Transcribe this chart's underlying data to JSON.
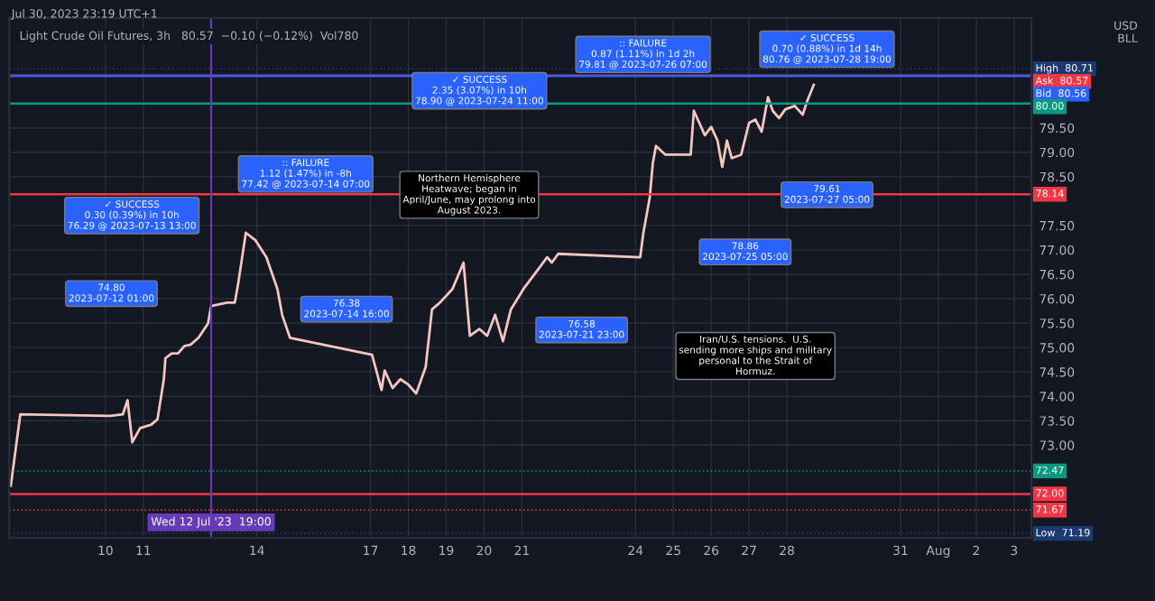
{
  "chart_data": {
    "type": "line",
    "title": "Light Crude Oil Futures, 3h",
    "subtitle": "80.57  −0.10 (−0.12%)  Vol780",
    "x": [
      "2023-07-07T12:00",
      "2023-07-07T18:00",
      "2023-07-10T03:00",
      "2023-07-10T11:00",
      "2023-07-10T14:00",
      "2023-07-10T17:00",
      "2023-07-10T22:00",
      "2023-07-11T05:00",
      "2023-07-11T09:00",
      "2023-07-11T13:00",
      "2023-07-11T14:00",
      "2023-07-11T18:00",
      "2023-07-11T22:00",
      "2023-07-12T02:00",
      "2023-07-12T06:00",
      "2023-07-12T11:00",
      "2023-07-12T17:00",
      "2023-07-12T19:00",
      "2023-07-13T05:00",
      "2023-07-13T10:00",
      "2023-07-13T12:00",
      "2023-07-13T17:00",
      "2023-07-13T23:00",
      "2023-07-14T06:00",
      "2023-07-14T13:00",
      "2023-07-14T16:00",
      "2023-07-14T21:00",
      "2023-07-17T01:00",
      "2023-07-17T07:00",
      "2023-07-17T09:00",
      "2023-07-17T14:00",
      "2023-07-17T19:00",
      "2023-07-18T00:00",
      "2023-07-18T05:00",
      "2023-07-18T11:00",
      "2023-07-18T15:00",
      "2023-07-18T20:00",
      "2023-07-19T04:00",
      "2023-07-19T11:00",
      "2023-07-19T15:00",
      "2023-07-19T21:00",
      "2023-07-20T02:00",
      "2023-07-20T07:00",
      "2023-07-20T12:00",
      "2023-07-20T17:00",
      "2023-07-21T01:00",
      "2023-07-21T11:00",
      "2023-07-21T16:00",
      "2023-07-21T19:00",
      "2023-07-21T23:00",
      "2023-07-24T03:00",
      "2023-07-24T05:00",
      "2023-07-24T09:00",
      "2023-07-24T11:00",
      "2023-07-24T13:00",
      "2023-07-24T19:00",
      "2023-07-25T05:00",
      "2023-07-25T11:00",
      "2023-07-25T13:00",
      "2023-07-25T20:00",
      "2023-07-26T00:00",
      "2023-07-26T04:00",
      "2023-07-26T07:00",
      "2023-07-26T10:00",
      "2023-07-26T13:00",
      "2023-07-26T19:00",
      "2023-07-27T00:00",
      "2023-07-27T04:00",
      "2023-07-27T08:00",
      "2023-07-27T12:00",
      "2023-07-27T15:00",
      "2023-07-27T19:00",
      "2023-07-27T23:00",
      "2023-07-28T05:00",
      "2023-07-28T10:00",
      "2023-07-28T13:00",
      "2023-07-28T17:00"
    ],
    "series": [
      {
        "color": "#f5c6c0",
        "values": [
          72.17,
          73.63,
          73.6,
          73.63,
          73.92,
          73.06,
          73.35,
          73.42,
          73.53,
          74.35,
          74.78,
          74.88,
          74.88,
          75.03,
          75.06,
          75.2,
          75.49,
          75.85,
          75.92,
          75.92,
          76.28,
          77.35,
          77.2,
          76.85,
          76.2,
          75.67,
          75.2,
          74.85,
          74.13,
          74.53,
          74.17,
          74.35,
          74.24,
          74.06,
          74.6,
          75.78,
          75.92,
          76.2,
          76.74,
          75.24,
          75.38,
          75.24,
          75.67,
          75.13,
          75.78,
          76.2,
          76.63,
          76.85,
          76.74,
          76.92,
          76.85,
          77.35,
          78.06,
          78.78,
          79.13,
          78.95,
          78.95,
          78.95,
          79.85,
          79.35,
          79.52,
          79.24,
          78.7,
          79.24,
          78.88,
          78.95,
          79.6,
          79.67,
          79.42,
          80.13,
          79.85,
          79.7,
          79.88,
          79.95,
          79.77,
          80.06,
          80.38
        ]
      }
    ],
    "xlim": [
      "2023-07-07T11:00",
      "2023-08-03T11:00"
    ],
    "ylim": [
      71.1,
      81.75
    ],
    "xticks": [
      {
        "value": "2023-07-10",
        "label": "10"
      },
      {
        "value": "2023-07-11",
        "label": "11"
      },
      {
        "value": "2023-07-14",
        "label": "14"
      },
      {
        "value": "2023-07-17",
        "label": "17"
      },
      {
        "value": "2023-07-18",
        "label": "18"
      },
      {
        "value": "2023-07-19",
        "label": "19"
      },
      {
        "value": "2023-07-20",
        "label": "20"
      },
      {
        "value": "2023-07-21",
        "label": "21"
      },
      {
        "value": "2023-07-24",
        "label": "24"
      },
      {
        "value": "2023-07-25",
        "label": "25"
      },
      {
        "value": "2023-07-26",
        "label": "26"
      },
      {
        "value": "2023-07-27",
        "label": "27"
      },
      {
        "value": "2023-07-28",
        "label": "28"
      },
      {
        "value": "2023-07-31",
        "label": "31"
      },
      {
        "value": "2023-08-01",
        "label": "Aug"
      },
      {
        "value": "2023-08-02",
        "label": "2"
      },
      {
        "value": "2023-08-03",
        "label": "3"
      }
    ],
    "yticks": [
      {
        "value": 73,
        "label": "73.00"
      },
      {
        "value": 73.5,
        "label": "73.50"
      },
      {
        "value": 74,
        "label": "74.00"
      },
      {
        "value": 74.5,
        "label": "74.50"
      },
      {
        "value": 75,
        "label": "75.00"
      },
      {
        "value": 75.5,
        "label": "75.50"
      },
      {
        "value": 76,
        "label": "76.00"
      },
      {
        "value": 76.5,
        "label": "76.50"
      },
      {
        "value": 77,
        "label": "77.00"
      },
      {
        "value": 77.5,
        "label": "77.50"
      },
      {
        "value": 78.5,
        "label": "78.50"
      },
      {
        "value": 79,
        "label": "79.00"
      },
      {
        "value": 79.5,
        "label": "79.50"
      }
    ],
    "grid": true,
    "legend": false,
    "ref_lines": [
      {
        "axis": "y",
        "value": 80.0,
        "label": "80.00",
        "color": "#089981",
        "line_style": "solid"
      },
      {
        "axis": "y",
        "value": 78.14,
        "label": "78.14",
        "color": "#f23645",
        "line_style": "solid"
      },
      {
        "axis": "y",
        "value": 72.0,
        "label": "72.00",
        "color": "#f23645",
        "line_style": "solid"
      },
      {
        "axis": "y",
        "value": 80.71,
        "label": "High  80.71",
        "color": "#1c3a72",
        "line_style": "dotted"
      },
      {
        "axis": "y",
        "value": 80.57,
        "label": "Ask  80.57",
        "color": "#f23645",
        "line_style": "solid"
      },
      {
        "axis": "y",
        "value": 80.56,
        "label": "Bid  80.56",
        "color": "#2962ff",
        "line_style": "solid"
      },
      {
        "axis": "y",
        "value": 71.19,
        "label": "Low  71.19",
        "color": "#1c3a72",
        "line_style": "dotted"
      },
      {
        "axis": "y",
        "value": 72.47,
        "label": "72.47",
        "color": "#089981",
        "line_style": "dotted"
      },
      {
        "axis": "y",
        "value": 71.67,
        "label": "71.67",
        "color": "#f23645",
        "line_style": "dotted"
      },
      {
        "axis": "x",
        "value": "2023-07-12T19:00",
        "label": "Wed 12 Jul '23  19:00",
        "color": "#673ab7",
        "line_style": "solid"
      }
    ],
    "annotations": [
      "Jul 30, 2023 23:19 UTC+1",
      "USD\nBLL",
      "✓ SUCCESS\n0.70 (0.88%) in 1d 14h\n80.76 @ 2023-07-28 19:00",
      ":: FAILURE\n0.87 (1.11%) in 1d 2h\n79.81 @ 2023-07-26 07:00",
      "✓ SUCCESS\n2.35 (3.07%) in 10h\n78.90 @ 2023-07-24 11:00",
      "79.61\n2023-07-27 05:00",
      "78.86\n2023-07-25 05:00",
      "76.58\n2023-07-21 23:00",
      ":: FAILURE\n1.12 (1.47%) in -8h\n77.42 @ 2023-07-14 07:00",
      "✓ SUCCESS\n0.30 (0.39%) in 10h\n76.29 @ 2023-07-13 13:00",
      "76.38\n2023-07-14 16:00",
      "74.80\n2023-07-12 01:00",
      "Northern Hemisphere\nHeatwave; began in\nApril/June, may prolong into\nAugust 2023.",
      "Iran/U.S. tensions.  U.S.\nsending more ships and military\npersonal to the Strait of\nHormuz."
    ]
  }
}
